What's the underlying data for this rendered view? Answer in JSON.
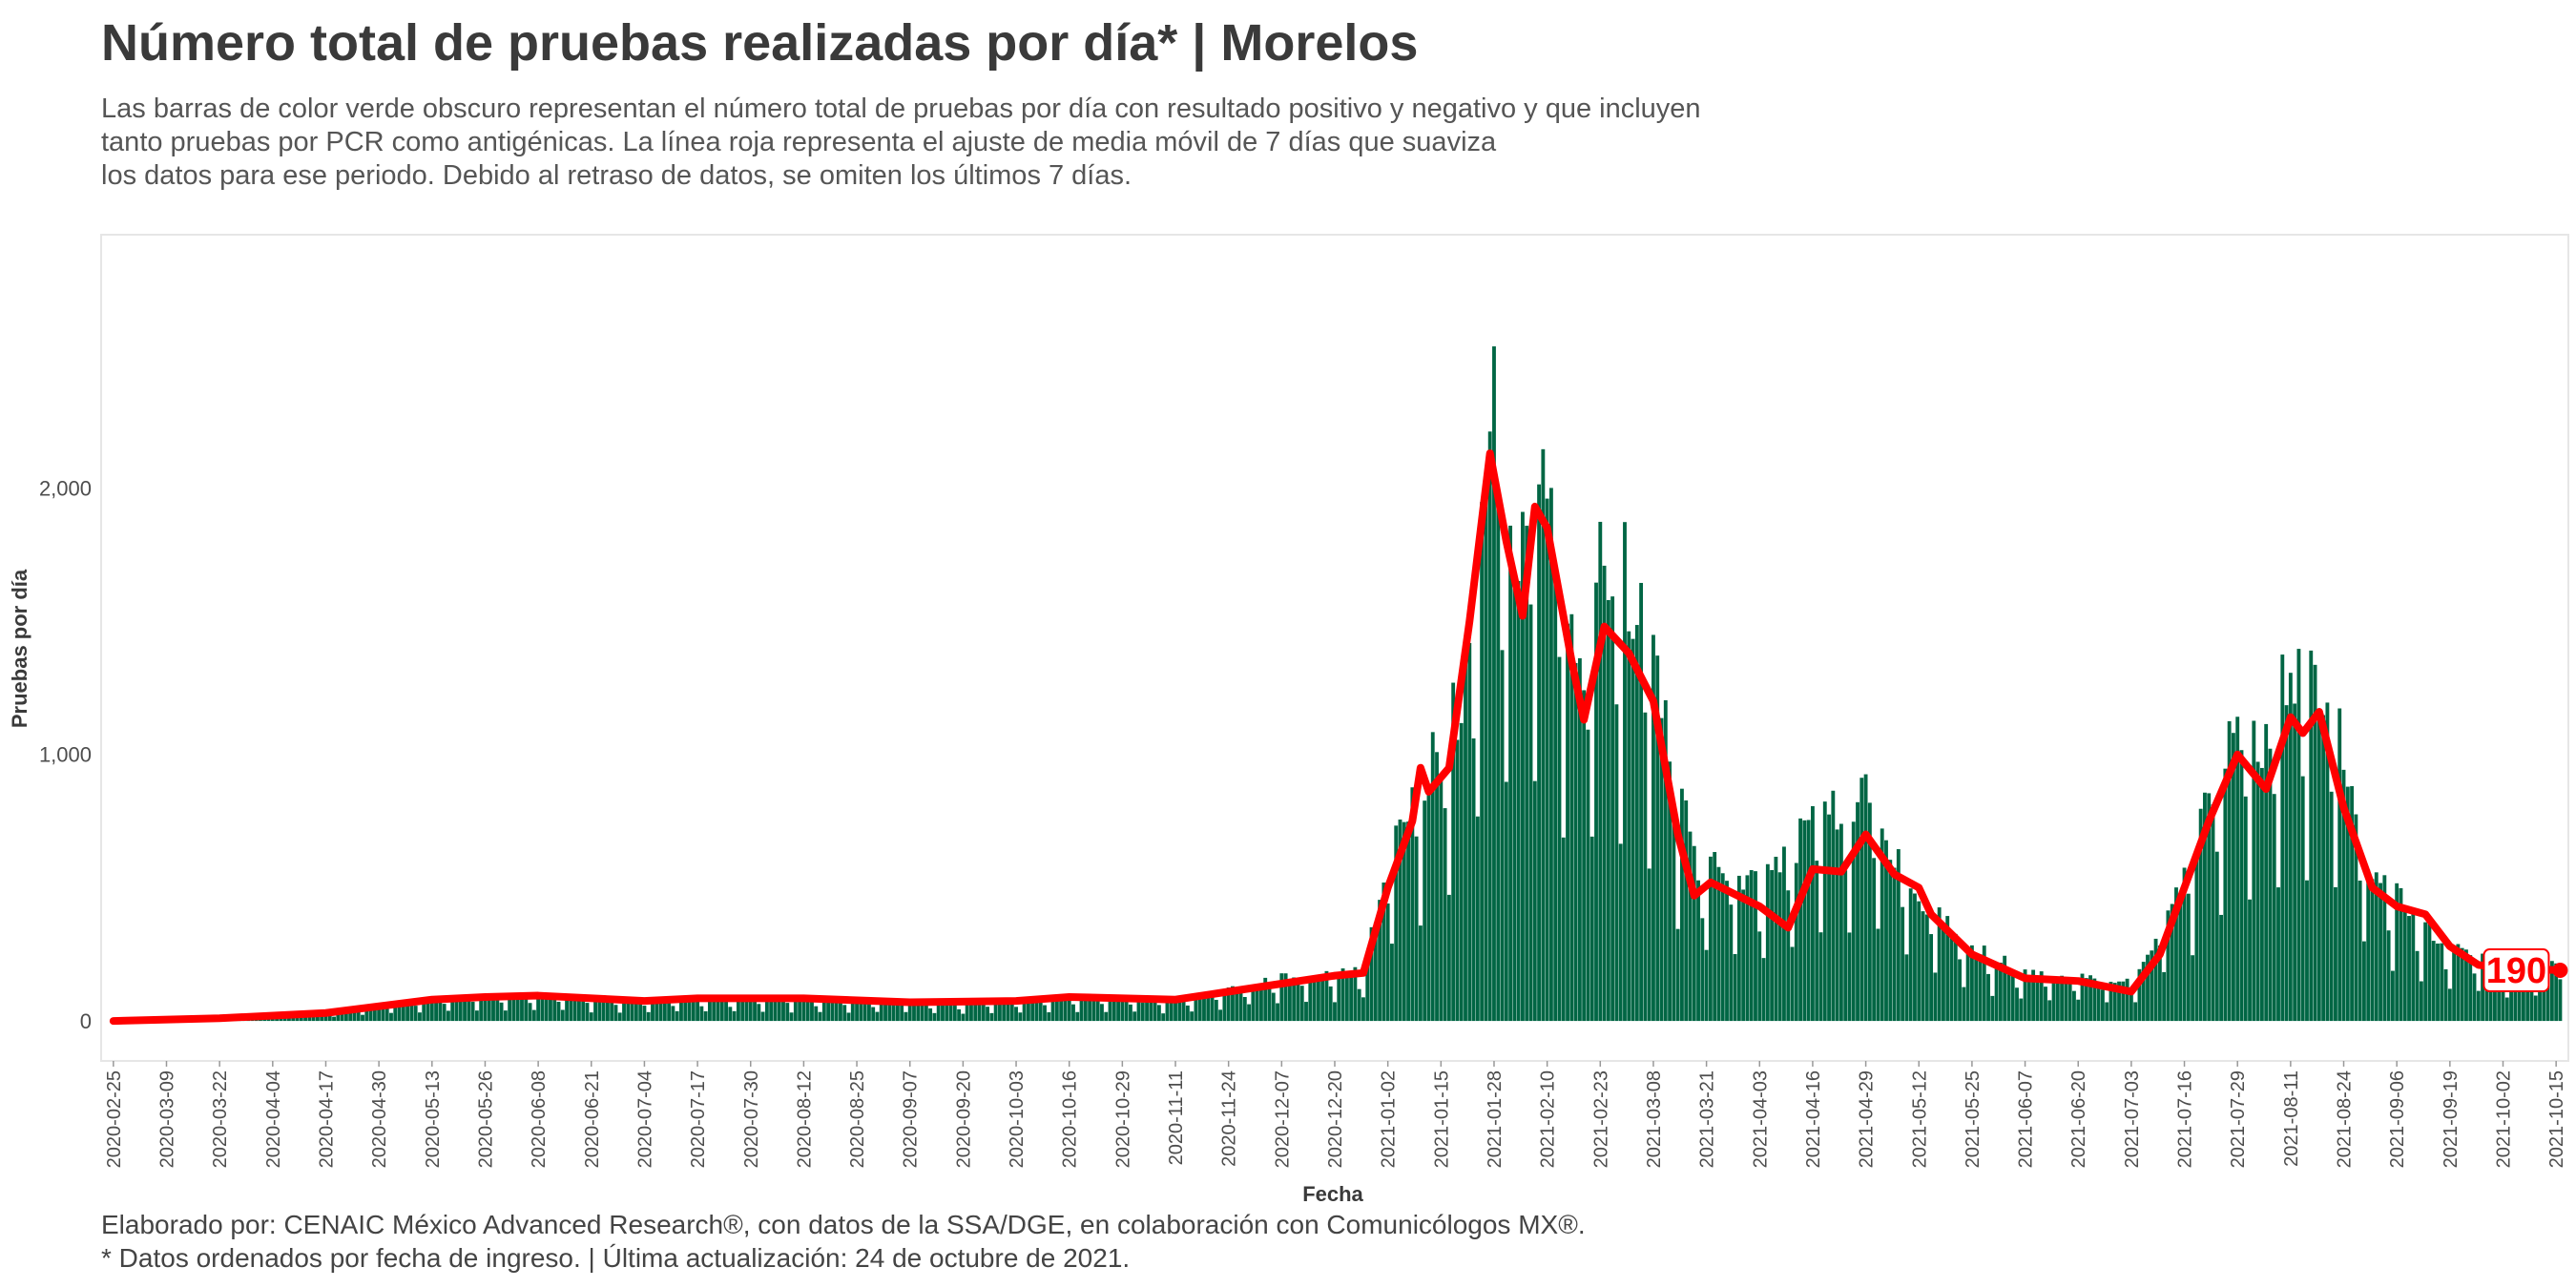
{
  "title": "Número total de pruebas realizadas por día* | Morelos",
  "subtitle_lines": [
    "Las barras de color verde obscuro representan el número total de pruebas por día con resultado positivo y negativo y que incluyen",
    "tanto pruebas por PCR como antigénicas. La línea roja representa el ajuste de media móvil de 7 días que suaviza",
    "los datos para ese periodo. Debido al retraso de datos, se omiten los últimos 7 días."
  ],
  "caption_lines": [
    "Elaborado por: CENAIC México Advanced Research®, con datos de la SSA/DGE, en colaboración con Comunicólogos MX®.",
    "* Datos ordenados por fecha de ingreso. | Última actualización: 24 de octubre de 2021."
  ],
  "colors": {
    "bar": "#006644",
    "line": "#ff0000",
    "text": "#3a3a3a",
    "panel_border": "#e6e6e6"
  },
  "chart_data": {
    "type": "bar",
    "xlabel": "Fecha",
    "ylabel": "Pruebas por día",
    "ylim": [
      -150,
      2950
    ],
    "yticks": [
      0,
      1000,
      2000
    ],
    "ytick_labels": [
      "0",
      "1,000",
      "2,000"
    ],
    "grid": false,
    "x_range": [
      "2020-02-22",
      "2021-10-18"
    ],
    "xtick_labels": [
      "2020-02-25",
      "2020-03-09",
      "2020-03-22",
      "2020-04-04",
      "2020-04-17",
      "2020-04-30",
      "2020-05-13",
      "2020-05-26",
      "2020-06-08",
      "2020-06-21",
      "2020-07-04",
      "2020-07-17",
      "2020-07-30",
      "2020-08-12",
      "2020-08-25",
      "2020-09-07",
      "2020-09-20",
      "2020-10-03",
      "2020-10-16",
      "2020-10-29",
      "2020-11-11",
      "2020-11-24",
      "2020-12-07",
      "2020-12-20",
      "2021-01-02",
      "2021-01-15",
      "2021-01-28",
      "2021-02-10",
      "2021-02-23",
      "2021-03-08",
      "2021-03-21",
      "2021-04-03",
      "2021-04-16",
      "2021-04-29",
      "2021-05-12",
      "2021-05-25",
      "2021-06-07",
      "2021-06-20",
      "2021-07-03",
      "2021-07-16",
      "2021-07-29",
      "2021-08-11",
      "2021-08-24",
      "2021-09-06",
      "2021-09-19",
      "2021-10-02",
      "2021-10-15"
    ],
    "bars_start_date": "2020-02-25",
    "bars_end_date": "2021-10-16",
    "daily_series_knots": [
      [
        "2020-02-25",
        2
      ],
      [
        "2020-03-22",
        12
      ],
      [
        "2020-04-17",
        35
      ],
      [
        "2020-05-13",
        85
      ],
      [
        "2020-06-01",
        95
      ],
      [
        "2020-07-04",
        80
      ],
      [
        "2020-08-12",
        85
      ],
      [
        "2020-09-20",
        65
      ],
      [
        "2020-10-16",
        85
      ],
      [
        "2020-11-11",
        75
      ],
      [
        "2020-11-24",
        120
      ],
      [
        "2020-12-07",
        160
      ],
      [
        "2020-12-27",
        190
      ],
      [
        "2021-01-02",
        600
      ],
      [
        "2021-01-10",
        900
      ],
      [
        "2021-01-20",
        1200
      ],
      [
        "2021-01-28",
        2300
      ],
      [
        "2021-02-03",
        1800
      ],
      [
        "2021-02-07",
        2200
      ],
      [
        "2021-02-12",
        1800
      ],
      [
        "2021-02-18",
        1300
      ],
      [
        "2021-02-23",
        1800
      ],
      [
        "2021-03-01",
        1700
      ],
      [
        "2021-03-08",
        1400
      ],
      [
        "2021-03-18",
        600
      ],
      [
        "2021-04-03",
        500
      ],
      [
        "2021-04-16",
        750
      ],
      [
        "2021-04-29",
        850
      ],
      [
        "2021-05-12",
        450
      ],
      [
        "2021-05-25",
        280
      ],
      [
        "2021-06-07",
        180
      ],
      [
        "2021-06-20",
        170
      ],
      [
        "2021-07-03",
        140
      ],
      [
        "2021-07-16",
        550
      ],
      [
        "2021-07-29",
        1150
      ],
      [
        "2021-08-04",
        1000
      ],
      [
        "2021-08-11",
        1350
      ],
      [
        "2021-08-18",
        1300
      ],
      [
        "2021-08-24",
        1000
      ],
      [
        "2021-08-31",
        550
      ],
      [
        "2021-09-06",
        480
      ],
      [
        "2021-09-19",
        280
      ],
      [
        "2021-10-02",
        240
      ],
      [
        "2021-10-16",
        200
      ]
    ],
    "moving_average_knots": [
      [
        "2020-02-25",
        0
      ],
      [
        "2020-03-22",
        10
      ],
      [
        "2020-04-17",
        30
      ],
      [
        "2020-05-13",
        80
      ],
      [
        "2020-05-26",
        90
      ],
      [
        "2020-06-08",
        95
      ],
      [
        "2020-07-04",
        75
      ],
      [
        "2020-07-17",
        85
      ],
      [
        "2020-08-12",
        85
      ],
      [
        "2020-09-07",
        70
      ],
      [
        "2020-10-03",
        75
      ],
      [
        "2020-10-16",
        90
      ],
      [
        "2020-11-11",
        80
      ],
      [
        "2020-11-24",
        110
      ],
      [
        "2020-12-07",
        140
      ],
      [
        "2020-12-20",
        170
      ],
      [
        "2020-12-27",
        180
      ],
      [
        "2021-01-02",
        500
      ],
      [
        "2021-01-08",
        750
      ],
      [
        "2021-01-10",
        950
      ],
      [
        "2021-01-12",
        860
      ],
      [
        "2021-01-17",
        950
      ],
      [
        "2021-01-22",
        1500
      ],
      [
        "2021-01-27",
        2130
      ],
      [
        "2021-01-31",
        1800
      ],
      [
        "2021-02-04",
        1520
      ],
      [
        "2021-02-07",
        1930
      ],
      [
        "2021-02-10",
        1850
      ],
      [
        "2021-02-16",
        1350
      ],
      [
        "2021-02-19",
        1130
      ],
      [
        "2021-02-24",
        1480
      ],
      [
        "2021-03-02",
        1380
      ],
      [
        "2021-03-08",
        1200
      ],
      [
        "2021-03-14",
        700
      ],
      [
        "2021-03-18",
        470
      ],
      [
        "2021-03-22",
        520
      ],
      [
        "2021-04-03",
        430
      ],
      [
        "2021-04-10",
        350
      ],
      [
        "2021-04-16",
        570
      ],
      [
        "2021-04-23",
        560
      ],
      [
        "2021-04-29",
        700
      ],
      [
        "2021-05-06",
        550
      ],
      [
        "2021-05-12",
        500
      ],
      [
        "2021-05-15",
        400
      ],
      [
        "2021-05-25",
        250
      ],
      [
        "2021-06-07",
        160
      ],
      [
        "2021-06-20",
        150
      ],
      [
        "2021-07-03",
        110
      ],
      [
        "2021-07-10",
        250
      ],
      [
        "2021-07-16",
        500
      ],
      [
        "2021-07-22",
        750
      ],
      [
        "2021-07-29",
        1000
      ],
      [
        "2021-08-05",
        870
      ],
      [
        "2021-08-11",
        1140
      ],
      [
        "2021-08-14",
        1080
      ],
      [
        "2021-08-18",
        1160
      ],
      [
        "2021-08-24",
        800
      ],
      [
        "2021-08-31",
        500
      ],
      [
        "2021-09-06",
        430
      ],
      [
        "2021-09-13",
        400
      ],
      [
        "2021-09-19",
        280
      ],
      [
        "2021-09-26",
        210
      ],
      [
        "2021-10-02",
        200
      ],
      [
        "2021-10-16",
        190
      ]
    ],
    "end_label": "190"
  }
}
